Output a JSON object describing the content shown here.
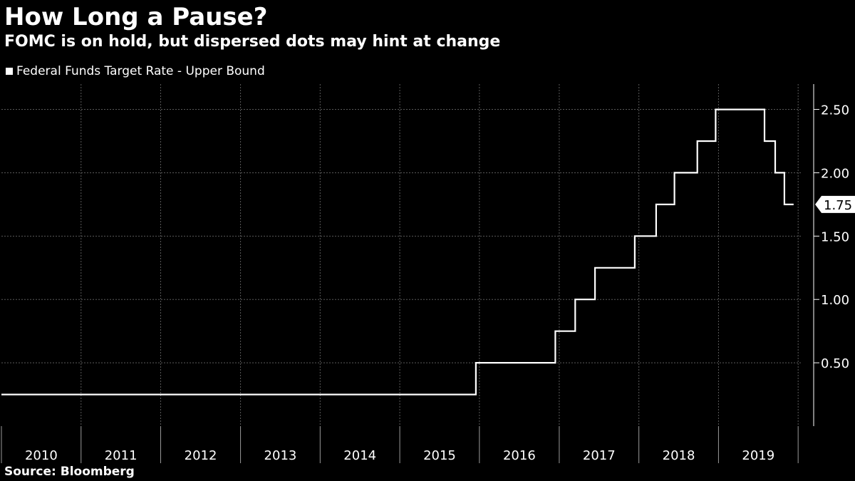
{
  "title": "How Long a Pause?",
  "subtitle": "FOMC is on hold, but dispersed dots may hint at change",
  "source": "Source: Bloomberg",
  "colors": {
    "background": "#000000",
    "line": "#ffffff",
    "grid": "#5a5a5a"
  },
  "chart_data": {
    "type": "line",
    "series": [
      {
        "name": "Federal Funds Target Rate - Upper Bound",
        "points": [
          [
            "2010-01-01",
            0.25
          ],
          [
            "2015-12-16",
            0.25
          ],
          [
            "2015-12-16",
            0.5
          ],
          [
            "2016-12-14",
            0.5
          ],
          [
            "2016-12-14",
            0.75
          ],
          [
            "2017-03-15",
            0.75
          ],
          [
            "2017-03-15",
            1.0
          ],
          [
            "2017-06-14",
            1.0
          ],
          [
            "2017-06-14",
            1.25
          ],
          [
            "2017-12-13",
            1.25
          ],
          [
            "2017-12-13",
            1.5
          ],
          [
            "2018-03-21",
            1.5
          ],
          [
            "2018-03-21",
            1.75
          ],
          [
            "2018-06-13",
            1.75
          ],
          [
            "2018-06-13",
            2.0
          ],
          [
            "2018-09-26",
            2.0
          ],
          [
            "2018-09-26",
            2.25
          ],
          [
            "2018-12-19",
            2.25
          ],
          [
            "2018-12-19",
            2.5
          ],
          [
            "2019-07-31",
            2.5
          ],
          [
            "2019-07-31",
            2.25
          ],
          [
            "2019-09-18",
            2.25
          ],
          [
            "2019-09-18",
            2.0
          ],
          [
            "2019-10-30",
            2.0
          ],
          [
            "2019-10-30",
            1.75
          ],
          [
            "2019-12-11",
            1.75
          ]
        ]
      }
    ],
    "x_ticks": [
      "2010",
      "2011",
      "2012",
      "2013",
      "2014",
      "2015",
      "2016",
      "2017",
      "2018",
      "2019"
    ],
    "y_ticks": [
      "0.50",
      "1.00",
      "1.50",
      "2.00",
      "2.50"
    ],
    "xlim": [
      "2010-01-01",
      "2020-01-20"
    ],
    "ylim": [
      0,
      2.7
    ],
    "last_value_label": "1.75",
    "grid": true,
    "legend_position": "top-left"
  }
}
